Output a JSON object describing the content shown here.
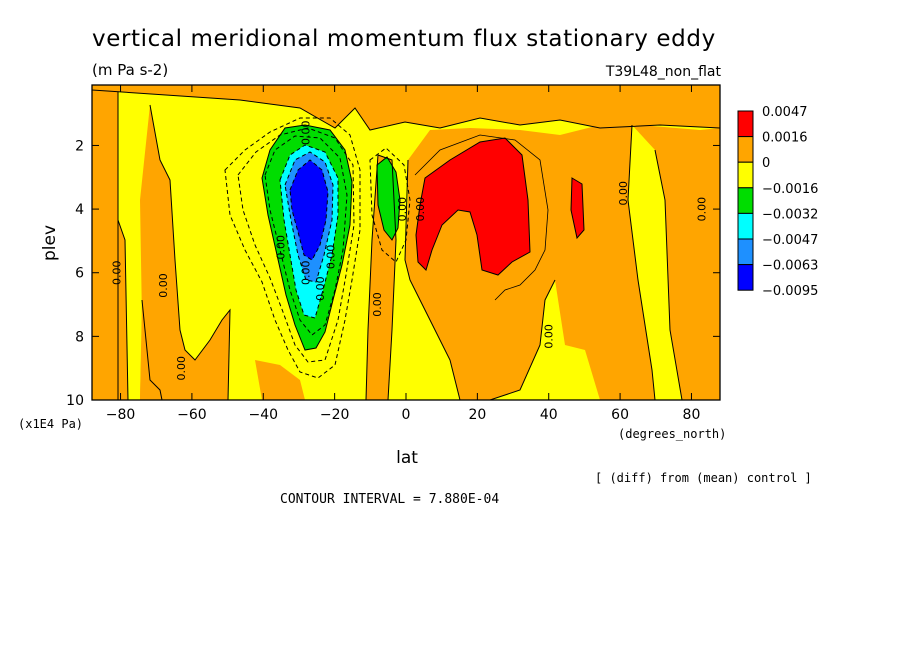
{
  "chart_data": {
    "type": "contour",
    "title": "vertical meridional momentum flux stationary eddy",
    "units": "(m Pa s-2)",
    "run_label": "T39L48_non_flat",
    "xlabel": "lat",
    "x_units": "(degrees_north)",
    "ylabel": "plev",
    "y_units": "(x1E4 Pa)",
    "xlim": [
      -88,
      88
    ],
    "ylim": [
      0.1,
      10
    ],
    "y_inverted": true,
    "x_ticks": [
      -80,
      -60,
      -40,
      -20,
      0,
      20,
      40,
      60,
      80
    ],
    "x_tick_labels": [
      "−80",
      "−60",
      "−40",
      "−20",
      "0",
      "20",
      "40",
      "60",
      "80"
    ],
    "y_ticks": [
      2,
      4,
      6,
      8,
      10
    ],
    "y_tick_labels": [
      "2",
      "4",
      "6",
      "8",
      "10"
    ],
    "colorbar": {
      "colors": [
        "#ff0000",
        "#ffa500",
        "#ffff00",
        "#00dd00",
        "#00ffff",
        "#1e90ff",
        "#0000ff"
      ],
      "labels": [
        "0.0047",
        "0.0016",
        "0",
        "−0.0016",
        "−0.0032",
        "−0.0047",
        "−0.0063",
        "−0.0095"
      ]
    },
    "contour_labels": [
      {
        "text": "0.00",
        "lat": -34,
        "plev": 5.2
      },
      {
        "text": "0.00",
        "lat": -27,
        "plev": 6.0
      },
      {
        "text": "0.00",
        "lat": -23,
        "plev": 6.5
      },
      {
        "text": "0.00",
        "lat": -20,
        "plev": 5.5
      },
      {
        "text": "0.00",
        "lat": -27,
        "plev": 1.6
      },
      {
        "text": "0.00",
        "lat": -80,
        "plev": 6.0
      },
      {
        "text": "0.00",
        "lat": -67,
        "plev": 6.4
      },
      {
        "text": "0.00",
        "lat": -62,
        "plev": 9.0
      },
      {
        "text": "0.00",
        "lat": -7,
        "plev": 7.0
      },
      {
        "text": "0.00",
        "lat": 0,
        "plev": 4.0
      },
      {
        "text": "0.00",
        "lat": 5,
        "plev": 4.0
      },
      {
        "text": "0.00",
        "lat": 41,
        "plev": 8.0
      },
      {
        "text": "0.00",
        "lat": 62,
        "plev": 3.5
      },
      {
        "text": "0.00",
        "lat": 84,
        "plev": 4.0
      }
    ],
    "contour_interval_text": "CONTOUR INTERVAL = 7.880E-04",
    "diff_note": "[ (diff) from (mean) control ]"
  }
}
